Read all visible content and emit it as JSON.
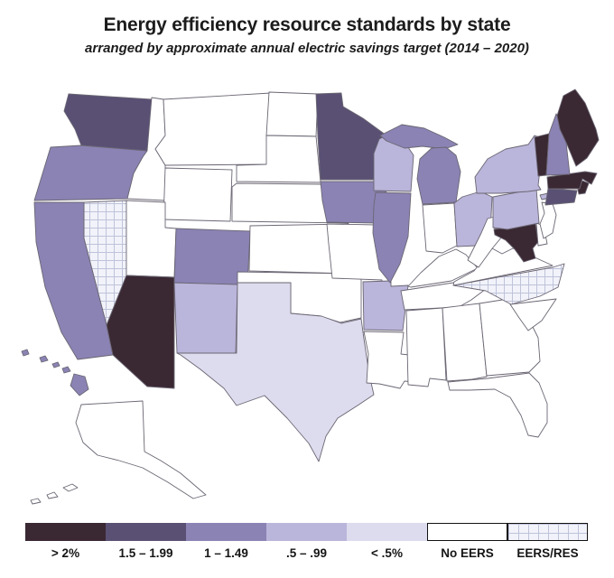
{
  "chart_data": {
    "type": "heatmap",
    "variant": "us_state_choropleth",
    "title": "Energy efficiency resource standards by state",
    "subtitle": "arranged by approximate annual electric savings target (2014 – 2020)",
    "legend_position": "bottom",
    "state_border_color": "#6b6673",
    "pattern_line_color": "#bfc3da",
    "categories": [
      {
        "id": "gt2",
        "label": "> 2%",
        "color": "#3a2833",
        "fill": "solid",
        "states": [
          "AZ",
          "MD",
          "ME",
          "MA",
          "RI",
          "VT"
        ]
      },
      {
        "id": "s15_199",
        "label": "1.5 – 1.99",
        "color": "#595074",
        "fill": "solid",
        "states": [
          "WA",
          "MN",
          "CT"
        ]
      },
      {
        "id": "s1_149",
        "label": "1 – 1.49",
        "color": "#8b83b4",
        "fill": "solid",
        "states": [
          "OR",
          "CA",
          "CO",
          "IA",
          "IL",
          "MI",
          "NH",
          "HI"
        ]
      },
      {
        "id": "s05_99",
        "label": ".5 – .99",
        "color": "#bab5da",
        "fill": "solid",
        "states": [
          "NM",
          "AR",
          "WI",
          "OH",
          "NY",
          "PA"
        ]
      },
      {
        "id": "lt05",
        "label": "< .5%",
        "color": "#dddcee",
        "fill": "solid",
        "states": [
          "TX"
        ]
      },
      {
        "id": "no_eers",
        "label": "No EERS",
        "color": "#ffffff",
        "fill": "solid",
        "states": [
          "AK",
          "AL",
          "DE",
          "FL",
          "GA",
          "ID",
          "IN",
          "KS",
          "KY",
          "LA",
          "MO",
          "MS",
          "MT",
          "ND",
          "NE",
          "NJ",
          "OK",
          "SC",
          "SD",
          "TN",
          "UT",
          "VA",
          "WV",
          "WY"
        ]
      },
      {
        "id": "eers_res",
        "label": "EERS/RES",
        "color": "#f2f3fa",
        "fill": "grid-pattern",
        "states": [
          "NV",
          "NC"
        ]
      }
    ]
  }
}
